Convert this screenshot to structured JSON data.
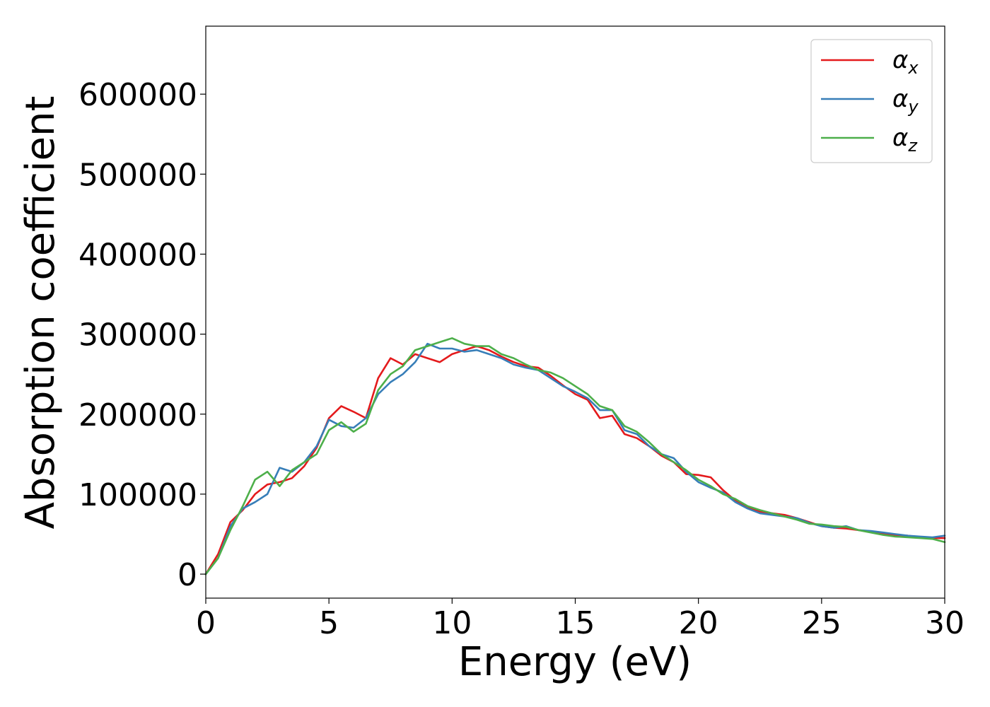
{
  "chart_data": {
    "type": "line",
    "title": "",
    "xlabel": "Energy (eV)",
    "ylabel": "Absorption coefficient",
    "xlim": [
      0,
      30
    ],
    "ylim": [
      -30000,
      685000
    ],
    "x_ticks": [
      0,
      5,
      10,
      15,
      20,
      25,
      30
    ],
    "y_ticks": [
      0,
      100000,
      200000,
      300000,
      400000,
      500000,
      600000
    ],
    "grid": false,
    "legend_position": "top-right",
    "series": [
      {
        "name": "α_x",
        "legend_base": "α",
        "legend_sub": "x",
        "color": "#e41a1c",
        "x": [
          0,
          0.5,
          1,
          1.5,
          2,
          2.5,
          3,
          3.5,
          4,
          4.5,
          5,
          5.5,
          6,
          6.5,
          7,
          7.5,
          8,
          8.5,
          9,
          9.5,
          10,
          10.5,
          11,
          11.5,
          12,
          12.5,
          13,
          13.5,
          14,
          14.5,
          15,
          15.5,
          16,
          16.5,
          17,
          17.5,
          18,
          18.5,
          19,
          19.5,
          20,
          20.5,
          21,
          21.5,
          22,
          22.5,
          23,
          23.5,
          24,
          24.5,
          25,
          25.5,
          26,
          26.5,
          27,
          27.5,
          28,
          28.5,
          29,
          29.5,
          30
        ],
        "y": [
          0,
          25000,
          65000,
          80000,
          100000,
          112000,
          115000,
          120000,
          135000,
          158000,
          195000,
          210000,
          203000,
          195000,
          245000,
          270000,
          262000,
          275000,
          270000,
          265000,
          275000,
          280000,
          285000,
          280000,
          272000,
          265000,
          260000,
          258000,
          248000,
          236000,
          225000,
          218000,
          195000,
          198000,
          175000,
          170000,
          160000,
          148000,
          140000,
          125000,
          124000,
          121000,
          105000,
          92000,
          83000,
          78000,
          76000,
          74000,
          70000,
          65000,
          60000,
          58000,
          57000,
          55000,
          53000,
          51000,
          49000,
          48000,
          46000,
          45000,
          45000
        ]
      },
      {
        "name": "α_y",
        "legend_base": "α",
        "legend_sub": "y",
        "color": "#377eb8",
        "x": [
          0,
          0.5,
          1,
          1.5,
          2,
          2.5,
          3,
          3.5,
          4,
          4.5,
          5,
          5.5,
          6,
          6.5,
          7,
          7.5,
          8,
          8.5,
          9,
          9.5,
          10,
          10.5,
          11,
          11.5,
          12,
          12.5,
          13,
          13.5,
          14,
          14.5,
          15,
          15.5,
          16,
          16.5,
          17,
          17.5,
          18,
          18.5,
          19,
          19.5,
          20,
          20.5,
          21,
          21.5,
          22,
          22.5,
          23,
          23.5,
          24,
          24.5,
          25,
          25.5,
          26,
          26.5,
          27,
          27.5,
          28,
          28.5,
          29,
          29.5,
          30
        ],
        "y": [
          0,
          20000,
          60000,
          82000,
          90000,
          100000,
          133000,
          128000,
          140000,
          160000,
          193000,
          185000,
          183000,
          195000,
          225000,
          240000,
          250000,
          265000,
          288000,
          282000,
          282000,
          278000,
          280000,
          275000,
          270000,
          262000,
          258000,
          255000,
          245000,
          235000,
          228000,
          220000,
          205000,
          205000,
          180000,
          175000,
          160000,
          150000,
          145000,
          128000,
          115000,
          108000,
          102000,
          90000,
          82000,
          76000,
          74000,
          72000,
          70000,
          64000,
          60000,
          58000,
          60000,
          55000,
          54000,
          52000,
          50000,
          48000,
          47000,
          46000,
          48000
        ]
      },
      {
        "name": "α_z",
        "legend_base": "α",
        "legend_sub": "z",
        "color": "#4daf4a",
        "x": [
          0,
          0.5,
          1,
          1.5,
          2,
          2.5,
          3,
          3.5,
          4,
          4.5,
          5,
          5.5,
          6,
          6.5,
          7,
          7.5,
          8,
          8.5,
          9,
          9.5,
          10,
          10.5,
          11,
          11.5,
          12,
          12.5,
          13,
          13.5,
          14,
          14.5,
          15,
          15.5,
          16,
          16.5,
          17,
          17.5,
          18,
          18.5,
          19,
          19.5,
          20,
          20.5,
          21,
          21.5,
          22,
          22.5,
          23,
          23.5,
          24,
          24.5,
          25,
          25.5,
          26,
          26.5,
          27,
          27.5,
          28,
          28.5,
          29,
          29.5,
          30
        ],
        "y": [
          0,
          20000,
          55000,
          85000,
          118000,
          128000,
          110000,
          130000,
          140000,
          150000,
          180000,
          190000,
          178000,
          188000,
          230000,
          250000,
          260000,
          280000,
          285000,
          290000,
          295000,
          288000,
          285000,
          285000,
          275000,
          270000,
          262000,
          255000,
          252000,
          245000,
          235000,
          225000,
          210000,
          205000,
          185000,
          178000,
          165000,
          150000,
          140000,
          130000,
          118000,
          110000,
          100000,
          94000,
          85000,
          80000,
          76000,
          72000,
          68000,
          63000,
          62000,
          60000,
          59000,
          55000,
          52000,
          49000,
          47000,
          46000,
          45000,
          44000,
          40000
        ]
      }
    ]
  }
}
